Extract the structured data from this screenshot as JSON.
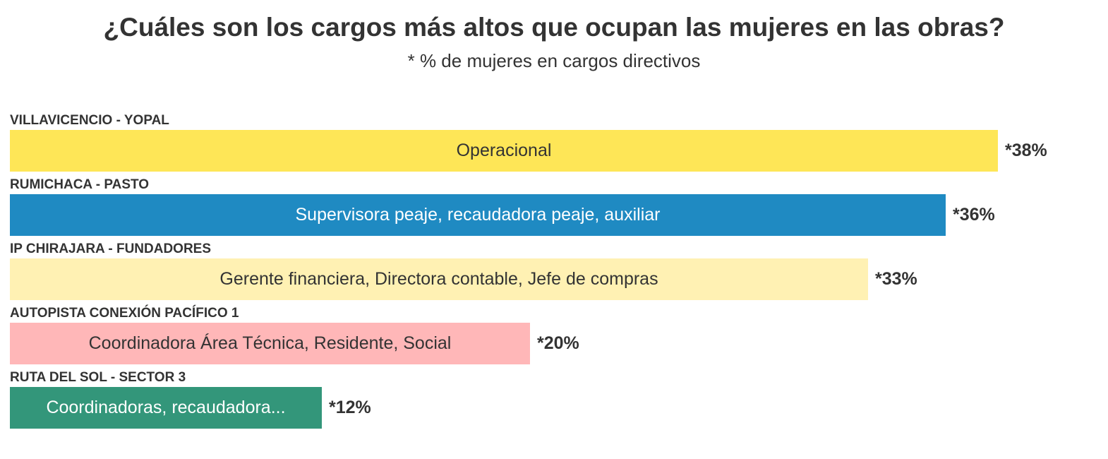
{
  "chart_data": {
    "type": "bar",
    "orientation": "horizontal",
    "title": "¿Cuáles son los cargos más altos que ocupan las mujeres en las obras?",
    "subtitle": "* % de mujeres en cargos directivos",
    "xlim": [
      0,
      38
    ],
    "grid": false,
    "legend": "none",
    "categories": [
      "VILLAVICENCIO - YOPAL",
      "RUMICHACA - PASTO",
      "IP CHIRAJARA - FUNDADORES",
      "AUTOPISTA CONEXIÓN PACÍFICO 1",
      "RUTA DEL SOL - SECTOR 3"
    ],
    "values": [
      38,
      36,
      33,
      20,
      12
    ],
    "value_labels": [
      "*38%",
      "*36%",
      "*33%",
      "*20%",
      "*12%"
    ],
    "bar_labels": [
      "Operacional",
      "Supervisora peaje, recaudadora peaje, auxiliar",
      "Gerente financiera, Directora contable, Jefe de compras",
      "Coordinadora Área Técnica, Residente, Social",
      "Coordinadoras, recaudadora..."
    ],
    "colors": [
      "#fee657",
      "#1f8ac2",
      "#fff1b3",
      "#ffb7b8",
      "#33967a"
    ],
    "text_colors": [
      "#333333",
      "#ffffff",
      "#333333",
      "#333333",
      "#ffffff"
    ]
  }
}
